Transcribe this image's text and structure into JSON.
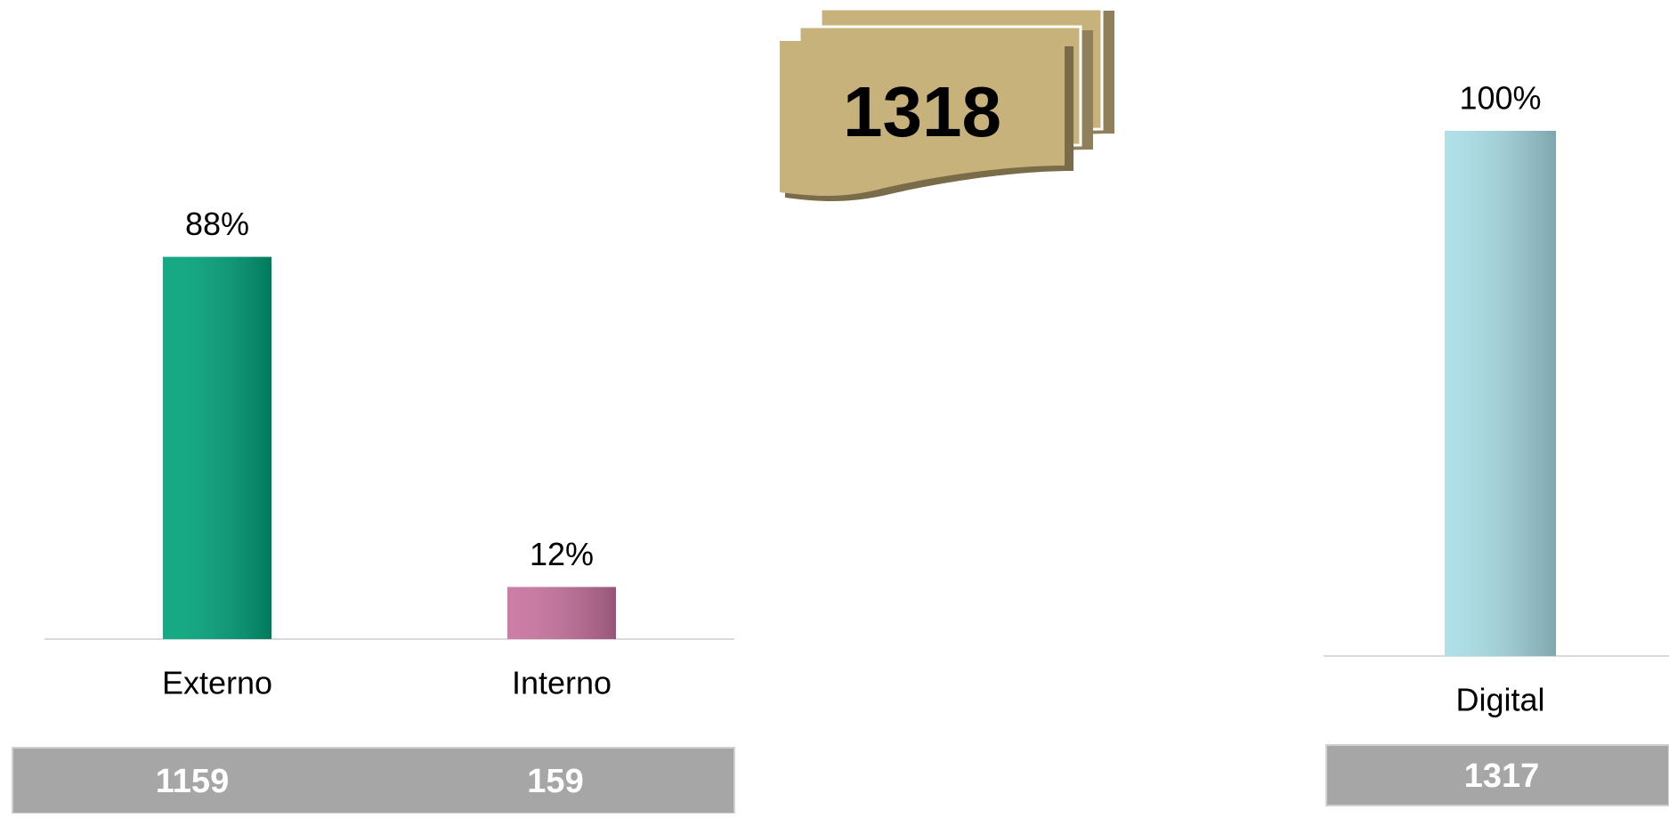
{
  "total": 1318,
  "chart_data": [
    {
      "type": "bar",
      "categories": [
        "Externo",
        "Interno"
      ],
      "values": [
        88,
        12
      ],
      "value_labels": [
        "88%",
        "12%"
      ],
      "colors": [
        "#00a37a",
        "#c8729e"
      ],
      "counts": [
        1159,
        159
      ]
    },
    {
      "type": "bar",
      "categories": [
        "Digital"
      ],
      "values": [
        100
      ],
      "value_labels": [
        "100%"
      ],
      "colors": [
        "#a8dde6"
      ],
      "counts": [
        1317
      ]
    }
  ]
}
